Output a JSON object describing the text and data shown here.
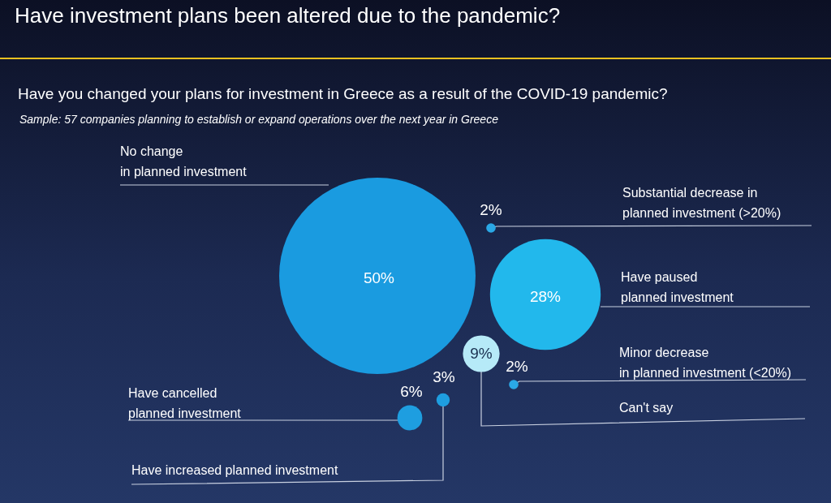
{
  "chart_data": {
    "type": "other",
    "title": "Have investment plans been altered due to the pandemic?",
    "subtitle": "Have you changed your plans for investment in Greece as a result of the COVID-19 pandemic?",
    "annotations": [
      "Sample: 57 companies planning to establish or expand operations over the next year in Greece"
    ],
    "categories": [
      "No change in planned investment",
      "Substantial decrease in planned investment (>20%)",
      "Have paused planned investment",
      "Minor decrease in planned investment (<20%)",
      "Can't say",
      "Have increased planned investment",
      "Have cancelled planned investment"
    ],
    "values": [
      50,
      2,
      28,
      2,
      9,
      3,
      6
    ],
    "value_labels": [
      "50%",
      "2%",
      "28%",
      "2%",
      "9%",
      "3%",
      "6%"
    ],
    "colors": [
      "#1a9be0",
      "#2aa8e6",
      "#22b8ec",
      "#2aa8e6",
      "#b6eaf8",
      "#1e9ee0",
      "#1e9ee0"
    ]
  }
}
